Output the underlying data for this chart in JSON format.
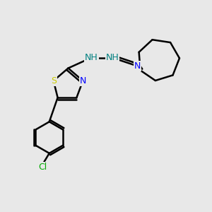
{
  "background_color": "#e8e8e8",
  "bond_color": "#000000",
  "atom_colors": {
    "S": "#cccc00",
    "N": "#0000ff",
    "Cl": "#00aa00",
    "C": "#000000",
    "H_label": "#008080"
  },
  "line_width": 1.8,
  "font_size": 9,
  "figsize": [
    3.0,
    3.0
  ],
  "dpi": 100
}
